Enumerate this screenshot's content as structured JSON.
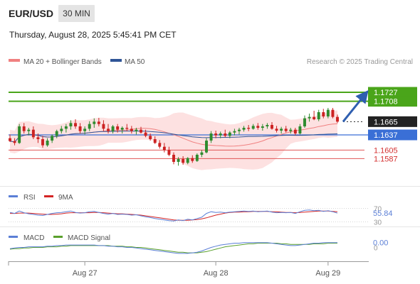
{
  "header": {
    "symbol": "EUR/USD",
    "timeframe": "30 MIN",
    "datetime": "Thursday, August 28, 2025 5:45:41 PM CET"
  },
  "legend": {
    "ma20_bb": "MA 20 + Bollinger Bands",
    "ma50": "MA 50",
    "copyright": "Research © 2025 Trading Central"
  },
  "colors": {
    "up": "#2e8b2e",
    "down": "#cc2222",
    "bb_fill": "#fde1e1",
    "ma20": "#f08080",
    "ma50": "#2f5597",
    "green_level": "#4aa51a",
    "blue_level": "#3a6fd6",
    "red_level": "#e05555",
    "rsi": "#5b7fd6",
    "rsi_ma": "#d42424",
    "macd": "#5b7fd6",
    "macd_signal": "#5aa02c"
  },
  "chart_data": [
    {
      "type": "candlestick",
      "title": "EUR/USD",
      "y_range": [
        1.1535,
        1.1775
      ],
      "x_ticks": [
        "Aug 27",
        "Aug 28",
        "Aug 29"
      ],
      "levels": [
        {
          "value": 1.1727,
          "label": "1.1727",
          "kind": "resistance"
        },
        {
          "value": 1.1708,
          "label": "1.1708",
          "kind": "resistance"
        },
        {
          "value": 1.1665,
          "label": "1.1665",
          "kind": "last"
        },
        {
          "value": 1.1637,
          "label": "1.1637",
          "kind": "pivot"
        },
        {
          "value": 1.1605,
          "label": "1.1605",
          "kind": "support"
        },
        {
          "value": 1.1587,
          "label": "1.1587",
          "kind": "support"
        }
      ],
      "projection_target": 1.1727,
      "candles": [
        [
          1.163,
          1.1638,
          1.1622,
          1.1624
        ],
        [
          1.1624,
          1.163,
          1.1615,
          1.162
        ],
        [
          1.162,
          1.166,
          1.1618,
          1.1655
        ],
        [
          1.1655,
          1.1662,
          1.164,
          1.1645
        ],
        [
          1.1645,
          1.1652,
          1.1636,
          1.1648
        ],
        [
          1.1648,
          1.1655,
          1.1628,
          1.1632
        ],
        [
          1.1632,
          1.164,
          1.162,
          1.1628
        ],
        [
          1.1628,
          1.1635,
          1.161,
          1.1615
        ],
        [
          1.1615,
          1.163,
          1.1612,
          1.1625
        ],
        [
          1.1625,
          1.1638,
          1.162,
          1.1635
        ],
        [
          1.1635,
          1.1648,
          1.163,
          1.1645
        ],
        [
          1.1645,
          1.1656,
          1.164,
          1.165
        ],
        [
          1.165,
          1.166,
          1.1642,
          1.1655
        ],
        [
          1.1655,
          1.1668,
          1.1648,
          1.1662
        ],
        [
          1.1662,
          1.167,
          1.165,
          1.1655
        ],
        [
          1.1655,
          1.1662,
          1.164,
          1.1645
        ],
        [
          1.1645,
          1.1655,
          1.1638,
          1.165
        ],
        [
          1.165,
          1.1666,
          1.1645,
          1.166
        ],
        [
          1.166,
          1.1672,
          1.1652,
          1.1665
        ],
        [
          1.1665,
          1.1673,
          1.1655,
          1.166
        ],
        [
          1.166,
          1.1668,
          1.1645,
          1.165
        ],
        [
          1.165,
          1.166,
          1.164,
          1.1645
        ],
        [
          1.1645,
          1.1658,
          1.164,
          1.1655
        ],
        [
          1.1655,
          1.166,
          1.1642,
          1.1648
        ],
        [
          1.1648,
          1.1655,
          1.164,
          1.1652
        ],
        [
          1.1652,
          1.166,
          1.1645,
          1.165
        ],
        [
          1.165,
          1.1656,
          1.164,
          1.1645
        ],
        [
          1.1645,
          1.1652,
          1.1638,
          1.1648
        ],
        [
          1.1648,
          1.1654,
          1.164,
          1.1642
        ],
        [
          1.1642,
          1.1648,
          1.1632,
          1.1635
        ],
        [
          1.1635,
          1.164,
          1.1625,
          1.1628
        ],
        [
          1.1628,
          1.1634,
          1.1618,
          1.162
        ],
        [
          1.162,
          1.1626,
          1.1608,
          1.1612
        ],
        [
          1.1612,
          1.162,
          1.16,
          1.1605
        ],
        [
          1.1605,
          1.1612,
          1.1592,
          1.1595
        ],
        [
          1.1595,
          1.16,
          1.1575,
          1.158
        ],
        [
          1.158,
          1.159,
          1.1572,
          1.1586
        ],
        [
          1.1586,
          1.1592,
          1.1574,
          1.1578
        ],
        [
          1.1578,
          1.159,
          1.1575,
          1.1588
        ],
        [
          1.1588,
          1.1594,
          1.1578,
          1.1582
        ],
        [
          1.1582,
          1.1598,
          1.158,
          1.1595
        ],
        [
          1.1595,
          1.1605,
          1.159,
          1.16
        ],
        [
          1.16,
          1.163,
          1.1598,
          1.1625
        ],
        [
          1.1625,
          1.1645,
          1.162,
          1.164
        ],
        [
          1.164,
          1.1646,
          1.163,
          1.1636
        ],
        [
          1.1636,
          1.1644,
          1.163,
          1.164
        ],
        [
          1.164,
          1.1648,
          1.1632,
          1.1635
        ],
        [
          1.1635,
          1.1645,
          1.163,
          1.1642
        ],
        [
          1.1642,
          1.165,
          1.1636,
          1.1645
        ],
        [
          1.1645,
          1.1652,
          1.1638,
          1.1648
        ],
        [
          1.1648,
          1.1656,
          1.1644,
          1.1652
        ],
        [
          1.1652,
          1.1658,
          1.1645,
          1.165
        ],
        [
          1.165,
          1.166,
          1.1648,
          1.1656
        ],
        [
          1.1656,
          1.1662,
          1.1648,
          1.1652
        ],
        [
          1.1652,
          1.166,
          1.1646,
          1.1655
        ],
        [
          1.1655,
          1.1662,
          1.165,
          1.1658
        ],
        [
          1.1658,
          1.1664,
          1.1648,
          1.165
        ],
        [
          1.165,
          1.1656,
          1.1642,
          1.1646
        ],
        [
          1.1646,
          1.1654,
          1.164,
          1.165
        ],
        [
          1.165,
          1.1656,
          1.1642,
          1.1645
        ],
        [
          1.1645,
          1.1652,
          1.164,
          1.1648
        ],
        [
          1.1648,
          1.1652,
          1.1636,
          1.164
        ],
        [
          1.164,
          1.166,
          1.1638,
          1.1655
        ],
        [
          1.1655,
          1.1678,
          1.1652,
          1.1672
        ],
        [
          1.1672,
          1.1682,
          1.1665,
          1.1675
        ],
        [
          1.1675,
          1.1688,
          1.1668,
          1.167
        ],
        [
          1.167,
          1.169,
          1.1666,
          1.1685
        ],
        [
          1.1685,
          1.1692,
          1.1672,
          1.1676
        ],
        [
          1.1676,
          1.1694,
          1.1672,
          1.169
        ],
        [
          1.169,
          1.1694,
          1.1672,
          1.1675
        ],
        [
          1.1675,
          1.168,
          1.1662,
          1.1665
        ]
      ]
    },
    {
      "type": "line",
      "title": "RSI",
      "legend": [
        "RSI",
        "9MA"
      ],
      "y_range": [
        25,
        75
      ],
      "y_ticks": [
        "70",
        "30"
      ],
      "last_value": "55.84",
      "rsi": [
        58,
        55,
        62,
        57,
        54,
        52,
        50,
        49,
        52,
        55,
        57,
        58,
        60,
        62,
        58,
        56,
        57,
        60,
        61,
        58,
        55,
        53,
        55,
        52,
        53,
        52,
        50,
        51,
        48,
        45,
        43,
        40,
        38,
        36,
        34,
        33,
        36,
        34,
        38,
        36,
        40,
        44,
        55,
        60,
        58,
        59,
        57,
        59,
        60,
        61,
        62,
        61,
        62,
        60,
        61,
        62,
        59,
        57,
        58,
        57,
        58,
        55,
        60,
        64,
        65,
        63,
        64,
        61,
        63,
        60,
        55.84
      ],
      "ma": [
        55,
        55,
        56,
        56,
        56,
        55,
        54,
        53,
        52,
        52,
        53,
        54,
        56,
        57,
        57,
        57,
        57,
        57,
        58,
        58,
        57,
        56,
        55,
        54,
        54,
        53,
        52,
        51,
        50,
        48,
        46,
        44,
        42,
        40,
        38,
        36,
        35,
        35,
        35,
        36,
        37,
        39,
        42,
        46,
        50,
        53,
        56,
        58,
        59,
        59,
        60,
        60,
        61,
        61,
        61,
        61,
        60,
        60,
        59,
        58,
        58,
        57,
        58,
        59,
        60,
        61,
        62,
        62,
        62,
        61,
        60
      ]
    },
    {
      "type": "line",
      "title": "MACD",
      "legend": [
        "MACD",
        "MACD Signal"
      ],
      "y_range": [
        -0.0012,
        0.0014
      ],
      "last_value": "0.00",
      "zero_label": "0",
      "macd": [
        0.0002,
        0.0003,
        0.0004,
        0.0004,
        0.0005,
        0.0005,
        0.0005,
        0.0005,
        0.0006,
        0.0006,
        0.0007,
        0.0007,
        0.0008,
        0.0008,
        0.0008,
        0.0008,
        0.0008,
        0.0008,
        0.0008,
        0.0007,
        0.0007,
        0.0006,
        0.0006,
        0.0005,
        0.0005,
        0.0004,
        0.0004,
        0.0003,
        0.0002,
        0.0001,
        0.0,
        -0.0001,
        -0.0002,
        -0.0003,
        -0.0004,
        -0.0005,
        -0.0006,
        -0.0006,
        -0.0006,
        -0.0005,
        -0.0004,
        -0.0002,
        0.0001,
        0.0004,
        0.0006,
        0.0008,
        0.0009,
        0.001,
        0.0011,
        0.0011,
        0.0012,
        0.0012,
        0.0012,
        0.0012,
        0.0012,
        0.0012,
        0.0011,
        0.001,
        0.0009,
        0.0008,
        0.0007,
        0.0007,
        0.0008,
        0.0009,
        0.001,
        0.0011,
        0.0011,
        0.0012,
        0.0012,
        0.0012,
        0.0012
      ],
      "signal": [
        0.0001,
        0.0002,
        0.0002,
        0.0003,
        0.0003,
        0.0004,
        0.0004,
        0.0004,
        0.0005,
        0.0005,
        0.0005,
        0.0006,
        0.0006,
        0.0007,
        0.0007,
        0.0007,
        0.0007,
        0.0007,
        0.0007,
        0.0007,
        0.0007,
        0.0007,
        0.0006,
        0.0006,
        0.0006,
        0.0005,
        0.0005,
        0.0004,
        0.0004,
        0.0003,
        0.0002,
        0.0001,
        0.0,
        -0.0001,
        -0.0002,
        -0.0003,
        -0.0004,
        -0.0004,
        -0.0005,
        -0.0005,
        -0.0005,
        -0.0004,
        -0.0003,
        -0.0001,
        0.0001,
        0.0003,
        0.0005,
        0.0006,
        0.0007,
        0.0008,
        0.0009,
        0.001,
        0.001,
        0.0011,
        0.0011,
        0.0011,
        0.0011,
        0.0011,
        0.001,
        0.001,
        0.0009,
        0.0009,
        0.0009,
        0.0009,
        0.0009,
        0.001,
        0.001,
        0.001,
        0.0011,
        0.0011,
        0.0011
      ]
    }
  ]
}
